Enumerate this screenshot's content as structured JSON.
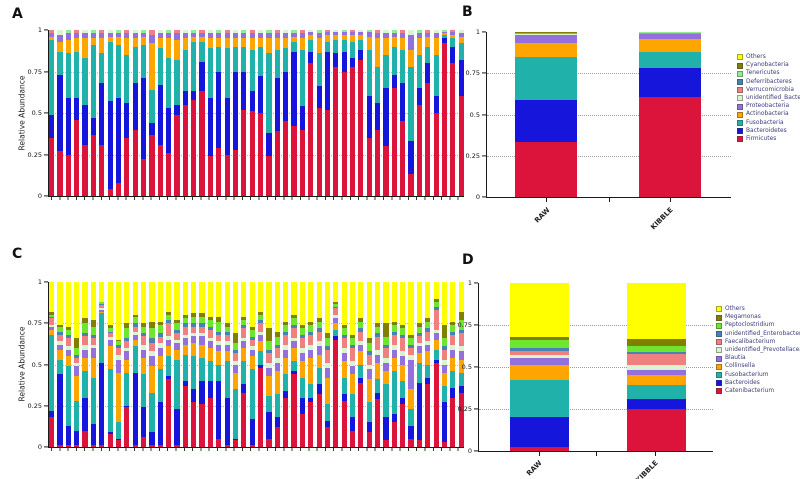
{
  "figure": {
    "panel_labels": {
      "a": "A",
      "b": "B",
      "c": "C",
      "d": "D"
    },
    "background": "#ffffff"
  },
  "axes": {
    "ylabel": "Relative Abundance",
    "ytick_labels": [
      "1",
      "0.75",
      "0.5",
      "0.25",
      "0"
    ],
    "ylim": [
      0,
      1
    ],
    "grid": "dotted horizontal lines at 0.25, 0.5, 0.75"
  },
  "chart_data": [
    {
      "panel": "A",
      "type": "bar",
      "subtype": "stacked, per-sample, phylum level",
      "title": "",
      "xlabel": "",
      "ylabel": "Relative Abundance",
      "ylim": [
        0,
        1
      ],
      "n_samples": 50,
      "x_tick_labels": "none shown (unlabeled samples)",
      "series": [
        "Firmicutes",
        "Bacteroidetes",
        "Fusobacteria",
        "Actinobacteria",
        "Proteobacteria"
      ],
      "colors": [
        "#DC143C",
        "#1515DC",
        "#20B2AA",
        "#FFA500",
        "#9370DB"
      ],
      "fill": "cycle",
      "fill_note": "remainder to 1.0 = minor phyla slivers (unidentified_Bacteria, Verrucomicrobia, Tenericutes etc.)",
      "fill_cycle": [
        "#F08080",
        "#D8F5D0",
        "#90EE90"
      ],
      "bars": [
        [
          0.35,
          0.14,
          0.45,
          0.02,
          0.02
        ],
        [
          0.27,
          0.46,
          0.14,
          0.06,
          0.04
        ],
        [
          0.25,
          0.34,
          0.27,
          0.08,
          0.04
        ],
        [
          0.46,
          0.13,
          0.28,
          0.08,
          0.03
        ],
        [
          0.31,
          0.24,
          0.28,
          0.12,
          0.03
        ],
        [
          0.37,
          0.1,
          0.44,
          0.04,
          0.03
        ],
        [
          0.31,
          0.37,
          0.18,
          0.09,
          0.03
        ],
        [
          0.04,
          0.53,
          0.36,
          0.03,
          0.02
        ],
        [
          0.08,
          0.51,
          0.32,
          0.05,
          0.02
        ],
        [
          0.35,
          0.21,
          0.29,
          0.1,
          0.03
        ],
        [
          0.4,
          0.28,
          0.22,
          0.05,
          0.03
        ],
        [
          0.22,
          0.49,
          0.2,
          0.05,
          0.02
        ],
        [
          0.37,
          0.07,
          0.2,
          0.28,
          0.05
        ],
        [
          0.31,
          0.36,
          0.22,
          0.06,
          0.03
        ],
        [
          0.26,
          0.27,
          0.3,
          0.12,
          0.03
        ],
        [
          0.49,
          0.06,
          0.27,
          0.12,
          0.04
        ],
        [
          0.55,
          0.08,
          0.25,
          0.07,
          0.03
        ],
        [
          0.58,
          0.05,
          0.3,
          0.03,
          0.02
        ],
        [
          0.63,
          0.18,
          0.12,
          0.03,
          0.02
        ],
        [
          0.24,
          0.35,
          0.3,
          0.06,
          0.03
        ],
        [
          0.29,
          0.46,
          0.15,
          0.05,
          0.03
        ],
        [
          0.25,
          0.34,
          0.3,
          0.06,
          0.03
        ],
        [
          0.28,
          0.47,
          0.15,
          0.05,
          0.03
        ],
        [
          0.52,
          0.23,
          0.15,
          0.05,
          0.03
        ],
        [
          0.51,
          0.12,
          0.25,
          0.07,
          0.03
        ],
        [
          0.5,
          0.22,
          0.18,
          0.05,
          0.03
        ],
        [
          0.24,
          0.14,
          0.48,
          0.09,
          0.03
        ],
        [
          0.39,
          0.32,
          0.17,
          0.07,
          0.03
        ],
        [
          0.45,
          0.3,
          0.14,
          0.06,
          0.03
        ],
        [
          0.42,
          0.45,
          0.06,
          0.03,
          0.02
        ],
        [
          0.4,
          0.14,
          0.34,
          0.07,
          0.03
        ],
        [
          0.8,
          0.07,
          0.07,
          0.03,
          0.02
        ],
        [
          0.53,
          0.13,
          0.2,
          0.09,
          0.03
        ],
        [
          0.52,
          0.35,
          0.06,
          0.04,
          0.02
        ],
        [
          0.78,
          0.08,
          0.08,
          0.03,
          0.02
        ],
        [
          0.75,
          0.12,
          0.07,
          0.03,
          0.02
        ],
        [
          0.78,
          0.05,
          0.1,
          0.04,
          0.02
        ],
        [
          0.82,
          0.06,
          0.06,
          0.03,
          0.02
        ],
        [
          0.35,
          0.25,
          0.28,
          0.08,
          0.03
        ],
        [
          0.4,
          0.16,
          0.22,
          0.17,
          0.03
        ],
        [
          0.3,
          0.35,
          0.2,
          0.1,
          0.03
        ],
        [
          0.65,
          0.08,
          0.17,
          0.06,
          0.02
        ],
        [
          0.45,
          0.23,
          0.2,
          0.07,
          0.03
        ],
        [
          0.13,
          0.2,
          0.45,
          0.1,
          0.09
        ],
        [
          0.55,
          0.1,
          0.2,
          0.1,
          0.03
        ],
        [
          0.68,
          0.12,
          0.1,
          0.06,
          0.02
        ],
        [
          0.5,
          0.1,
          0.25,
          0.1,
          0.03
        ],
        [
          0.92,
          0.03,
          0.02,
          0.01,
          0.01
        ],
        [
          0.8,
          0.1,
          0.05,
          0.02,
          0.02
        ],
        [
          0.6,
          0.22,
          0.1,
          0.04,
          0.02
        ]
      ]
    },
    {
      "panel": "B",
      "type": "bar",
      "subtype": "stacked, group mean, phylum level",
      "title": "",
      "xlabel": "",
      "ylabel": "",
      "ylim": [
        0,
        1
      ],
      "categories": [
        "RAW",
        "KIBBLE"
      ],
      "series": [
        "Firmicutes",
        "Bacteroidetes",
        "Fusobacteria",
        "Actinobacteria",
        "Proteobacteria",
        "unidentified_Bacteria",
        "Verrucomicrobia",
        "Deferribacteres",
        "Tenericutes",
        "Cyanobacteria",
        "Others"
      ],
      "colors": [
        "#DC143C",
        "#1515DC",
        "#20B2AA",
        "#FFA500",
        "#9370DB",
        "#D8F5D0",
        "#F08080",
        "#4682B4",
        "#90EE90",
        "#808000",
        "#FFFF00"
      ],
      "legend_position": "right, top-to-bottom = Others ... Firmicutes",
      "bars": [
        [
          0.335,
          0.255,
          0.26,
          0.085,
          0.05,
          0.004,
          0.003,
          0.003,
          0.002,
          0.002,
          0.001
        ],
        [
          0.605,
          0.18,
          0.095,
          0.075,
          0.033,
          0.003,
          0.003,
          0.002,
          0.002,
          0.001,
          0.001
        ]
      ]
    },
    {
      "panel": "C",
      "type": "bar",
      "subtype": "stacked, per-sample, genus level",
      "title": "",
      "xlabel": "",
      "ylabel": "Relative Abundance",
      "ylim": [
        0,
        1
      ],
      "n_samples": 50,
      "x_tick_labels": "none shown (unlabeled samples)",
      "series": [
        "Catenibacterium",
        "Bacteroides",
        "Fusobacterium",
        "Collinsella",
        "Blautia",
        "unidentified_Prevotellaceae",
        "Faecalibacterium",
        "unidentified_Enterobacteriaceae",
        "Peptoclostridium",
        "Megamonas"
      ],
      "colors": [
        "#DC143C",
        "#1515DC",
        "#20B2AA",
        "#FFA500",
        "#9370DB",
        "#D8F5D0",
        "#F08080",
        "#4682B4",
        "#6FE62E",
        "#808000"
      ],
      "fill": "#FFFF00",
      "fill_note": "remainder to 1.0 = Others (yellow)",
      "bars": [
        [
          0.18,
          0.04,
          0.46,
          0.03,
          0.02,
          0.01,
          0.04,
          0.01,
          0.01,
          0.02
        ],
        [
          0.01,
          0.43,
          0.09,
          0.06,
          0.03,
          0.02,
          0.04,
          0.02,
          0.03,
          0.01
        ],
        [
          0.01,
          0.12,
          0.36,
          0.06,
          0.04,
          0.02,
          0.05,
          0.02,
          0.03,
          0.02
        ],
        [
          0.01,
          0.09,
          0.18,
          0.15,
          0.06,
          0.02,
          0.03,
          0.02,
          0.04,
          0.06
        ],
        [
          0.1,
          0.2,
          0.16,
          0.08,
          0.05,
          0.03,
          0.05,
          0.02,
          0.06,
          0.03
        ],
        [
          0.01,
          0.13,
          0.28,
          0.12,
          0.06,
          0.02,
          0.04,
          0.02,
          0.05,
          0.04
        ],
        [
          0.01,
          0.5,
          0.3,
          0.01,
          0.01,
          0.01,
          0.02,
          0.01,
          0.01,
          0.0
        ],
        [
          0.08,
          0.01,
          0.38,
          0.14,
          0.04,
          0.02,
          0.02,
          0.01,
          0.02,
          0.02
        ],
        [
          0.04,
          0.01,
          0.1,
          0.3,
          0.08,
          0.03,
          0.04,
          0.02,
          0.02,
          0.01
        ],
        [
          0.24,
          0.01,
          0.2,
          0.08,
          0.05,
          0.02,
          0.04,
          0.02,
          0.06,
          0.03
        ],
        [
          0.01,
          0.44,
          0.16,
          0.04,
          0.03,
          0.02,
          0.03,
          0.02,
          0.04,
          0.01
        ],
        [
          0.06,
          0.18,
          0.2,
          0.1,
          0.05,
          0.03,
          0.05,
          0.02,
          0.04,
          0.02
        ],
        [
          0.01,
          0.08,
          0.24,
          0.16,
          0.06,
          0.03,
          0.05,
          0.03,
          0.06,
          0.04
        ],
        [
          0.01,
          0.26,
          0.2,
          0.08,
          0.05,
          0.03,
          0.04,
          0.02,
          0.05,
          0.02
        ],
        [
          0.41,
          0.02,
          0.12,
          0.06,
          0.04,
          0.02,
          0.08,
          0.02,
          0.03,
          0.02
        ],
        [
          0.01,
          0.22,
          0.3,
          0.06,
          0.04,
          0.02,
          0.04,
          0.02,
          0.04,
          0.02
        ],
        [
          0.37,
          0.03,
          0.16,
          0.06,
          0.04,
          0.02,
          0.05,
          0.02,
          0.03,
          0.02
        ],
        [
          0.27,
          0.08,
          0.2,
          0.08,
          0.04,
          0.02,
          0.04,
          0.02,
          0.04,
          0.02
        ],
        [
          0.26,
          0.14,
          0.14,
          0.08,
          0.05,
          0.02,
          0.04,
          0.02,
          0.04,
          0.02
        ],
        [
          0.3,
          0.1,
          0.12,
          0.08,
          0.04,
          0.02,
          0.05,
          0.02,
          0.04,
          0.02
        ],
        [
          0.05,
          0.35,
          0.1,
          0.08,
          0.04,
          0.02,
          0.04,
          0.02,
          0.06,
          0.03
        ],
        [
          0.01,
          0.29,
          0.22,
          0.06,
          0.04,
          0.02,
          0.04,
          0.02,
          0.03,
          0.02
        ],
        [
          0.04,
          0.01,
          0.3,
          0.1,
          0.05,
          0.02,
          0.05,
          0.02,
          0.04,
          0.06
        ],
        [
          0.33,
          0.05,
          0.14,
          0.08,
          0.04,
          0.02,
          0.06,
          0.02,
          0.03,
          0.02
        ],
        [
          0.01,
          0.16,
          0.3,
          0.08,
          0.04,
          0.02,
          0.04,
          0.02,
          0.04,
          0.02
        ],
        [
          0.48,
          0.02,
          0.08,
          0.06,
          0.04,
          0.02,
          0.05,
          0.02,
          0.03,
          0.02
        ],
        [
          0.05,
          0.16,
          0.1,
          0.12,
          0.05,
          0.03,
          0.06,
          0.02,
          0.05,
          0.08
        ],
        [
          0.12,
          0.06,
          0.14,
          0.14,
          0.05,
          0.03,
          0.06,
          0.02,
          0.05,
          0.03
        ],
        [
          0.3,
          0.04,
          0.1,
          0.1,
          0.05,
          0.03,
          0.06,
          0.02,
          0.04,
          0.02
        ],
        [
          0.44,
          0.02,
          0.06,
          0.08,
          0.04,
          0.02,
          0.06,
          0.02,
          0.04,
          0.02
        ],
        [
          0.2,
          0.1,
          0.12,
          0.1,
          0.05,
          0.03,
          0.06,
          0.02,
          0.04,
          0.02
        ],
        [
          0.27,
          0.03,
          0.08,
          0.16,
          0.05,
          0.03,
          0.06,
          0.02,
          0.04,
          0.02
        ],
        [
          0.32,
          0.06,
          0.1,
          0.08,
          0.05,
          0.03,
          0.06,
          0.02,
          0.04,
          0.02
        ],
        [
          0.12,
          0.04,
          0.1,
          0.16,
          0.06,
          0.03,
          0.08,
          0.02,
          0.05,
          0.03
        ],
        [
          0.65,
          0.02,
          0.04,
          0.04,
          0.03,
          0.02,
          0.04,
          0.01,
          0.02,
          0.01
        ],
        [
          0.28,
          0.04,
          0.1,
          0.1,
          0.05,
          0.03,
          0.06,
          0.02,
          0.04,
          0.02
        ],
        [
          0.1,
          0.08,
          0.14,
          0.12,
          0.05,
          0.03,
          0.08,
          0.02,
          0.04,
          0.02
        ],
        [
          0.39,
          0.03,
          0.08,
          0.08,
          0.04,
          0.02,
          0.06,
          0.02,
          0.04,
          0.02
        ],
        [
          0.09,
          0.06,
          0.12,
          0.14,
          0.06,
          0.03,
          0.06,
          0.02,
          0.05,
          0.03
        ],
        [
          0.29,
          0.04,
          0.08,
          0.1,
          0.05,
          0.03,
          0.08,
          0.02,
          0.04,
          0.02
        ],
        [
          0.04,
          0.14,
          0.2,
          0.08,
          0.05,
          0.03,
          0.06,
          0.02,
          0.05,
          0.08
        ],
        [
          0.15,
          0.05,
          0.26,
          0.08,
          0.05,
          0.03,
          0.06,
          0.02,
          0.04,
          0.02
        ],
        [
          0.26,
          0.04,
          0.1,
          0.1,
          0.05,
          0.03,
          0.08,
          0.02,
          0.04,
          0.02
        ],
        [
          0.05,
          0.08,
          0.1,
          0.12,
          0.18,
          0.03,
          0.04,
          0.02,
          0.04,
          0.02
        ],
        [
          0.04,
          0.35,
          0.12,
          0.06,
          0.04,
          0.02,
          0.04,
          0.02,
          0.04,
          0.02
        ],
        [
          0.38,
          0.04,
          0.08,
          0.08,
          0.04,
          0.02,
          0.06,
          0.02,
          0.04,
          0.02
        ],
        [
          0.51,
          0.02,
          0.06,
          0.06,
          0.04,
          0.02,
          0.12,
          0.02,
          0.03,
          0.02
        ],
        [
          0.03,
          0.24,
          0.1,
          0.08,
          0.05,
          0.03,
          0.06,
          0.02,
          0.05,
          0.08
        ],
        [
          0.3,
          0.06,
          0.1,
          0.08,
          0.05,
          0.03,
          0.06,
          0.02,
          0.04,
          0.02
        ],
        [
          0.33,
          0.04,
          0.08,
          0.08,
          0.05,
          0.03,
          0.08,
          0.02,
          0.06,
          0.05
        ]
      ]
    },
    {
      "panel": "D",
      "type": "bar",
      "subtype": "stacked, group mean, genus level",
      "title": "",
      "xlabel": "",
      "ylabel": "",
      "ylim": [
        0,
        1
      ],
      "categories": [
        "RAW",
        "KIBBLE"
      ],
      "series": [
        "Catenibacterium",
        "Bacteroides",
        "Fusobacterium",
        "Collinsella",
        "Blautia",
        "unidentified_Prevotellaceae",
        "Faecalibacterium",
        "unidentified_Enterobacteriaceae",
        "Peptoclostridium",
        "Megamonas",
        "Others"
      ],
      "colors": [
        "#DC143C",
        "#1515DC",
        "#20B2AA",
        "#FFA500",
        "#9370DB",
        "#D8F5D0",
        "#F08080",
        "#4682B4",
        "#6FE62E",
        "#808000",
        "#FFFF00"
      ],
      "legend_position": "right, top-to-bottom = Others ... Catenibacterium",
      "bars": [
        [
          0.025,
          0.175,
          0.22,
          0.09,
          0.045,
          0.015,
          0.025,
          0.02,
          0.045,
          0.02,
          0.32
        ],
        [
          0.25,
          0.06,
          0.08,
          0.065,
          0.025,
          0.03,
          0.065,
          0.015,
          0.035,
          0.045,
          0.33
        ]
      ]
    }
  ]
}
